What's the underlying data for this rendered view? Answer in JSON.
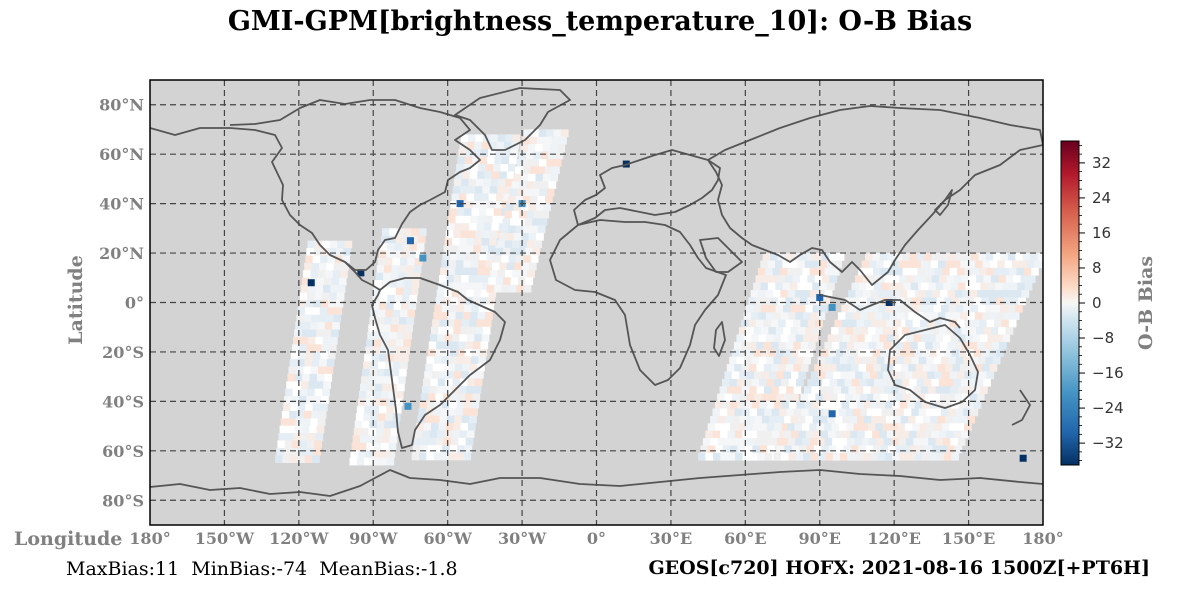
{
  "title": "GMI-GPM[brightness_temperature_10]: O-B Bias",
  "axes": {
    "ylabel": "Latitude",
    "xlabel": "Longitude",
    "lat_ticks": [
      "80°N",
      "60°N",
      "40°N",
      "20°N",
      "0°",
      "20°S",
      "40°S",
      "60°S",
      "80°S"
    ],
    "lon_ticks": [
      "180°",
      "150°W",
      "120°W",
      "90°W",
      "60°W",
      "30°W",
      "0°",
      "30°E",
      "60°E",
      "90°E",
      "120°E",
      "150°E",
      "180°"
    ]
  },
  "colorbar": {
    "label": "O-B Bias",
    "ticks": [
      "32",
      "24",
      "16",
      "8",
      "0",
      "−8",
      "−16",
      "−24",
      "−32"
    ],
    "range": [
      -37,
      37
    ],
    "colormap": "RdBu_r"
  },
  "stats": {
    "max": "MaxBias:11",
    "min": "MinBias:-74",
    "mean": "MeanBias:-1.8"
  },
  "run_label": "GEOS[c720] HOFX: 2021-08-16 1500Z[+PT6H]",
  "colors": {
    "land_ocean_bg": "#d3d3d3",
    "coast": "#555555",
    "grid": "#444444"
  },
  "chart_data": {
    "type": "heatmap",
    "projection": "PlateCarree",
    "xlim": [
      -180,
      180
    ],
    "ylim": [
      -90,
      90
    ],
    "grid": true,
    "swaths": [
      {
        "name": "pacific-east",
        "lon_range": [
          -130,
          -100
        ],
        "lat_range": [
          -65,
          25
        ]
      },
      {
        "name": "pacific-mid",
        "lon_range": [
          -100,
          -70
        ],
        "lat_range": [
          -65,
          30
        ]
      },
      {
        "name": "atlantic-west",
        "lon_range": [
          -75,
          -30
        ],
        "lat_range": [
          -65,
          68
        ]
      },
      {
        "name": "atlantic-mid",
        "lon_range": [
          -45,
          -10
        ],
        "lat_range": [
          5,
          70
        ]
      },
      {
        "name": "indian-west",
        "lon_range": [
          40,
          100
        ],
        "lat_range": [
          -65,
          20
        ]
      },
      {
        "name": "indian-east",
        "lon_range": [
          70,
          155
        ],
        "lat_range": [
          -65,
          20
        ]
      },
      {
        "name": "pacific-west",
        "lon_range": [
          100,
          180
        ],
        "lat_range": [
          -65,
          20
        ]
      }
    ],
    "strong_negative_points": [
      {
        "lon": -95,
        "lat": 12
      },
      {
        "lon": -75,
        "lat": 25
      },
      {
        "lon": -70,
        "lat": 18
      },
      {
        "lon": -115,
        "lat": 8
      },
      {
        "lon": -55,
        "lat": 40
      },
      {
        "lon": -30,
        "lat": 40
      },
      {
        "lon": 12,
        "lat": 56
      },
      {
        "lon": 90,
        "lat": 2
      },
      {
        "lon": 95,
        "lat": -2
      },
      {
        "lon": 118,
        "lat": 0
      },
      {
        "lon": 95,
        "lat": -45
      },
      {
        "lon": -76,
        "lat": -42
      },
      {
        "lon": 172,
        "lat": -63
      }
    ]
  }
}
